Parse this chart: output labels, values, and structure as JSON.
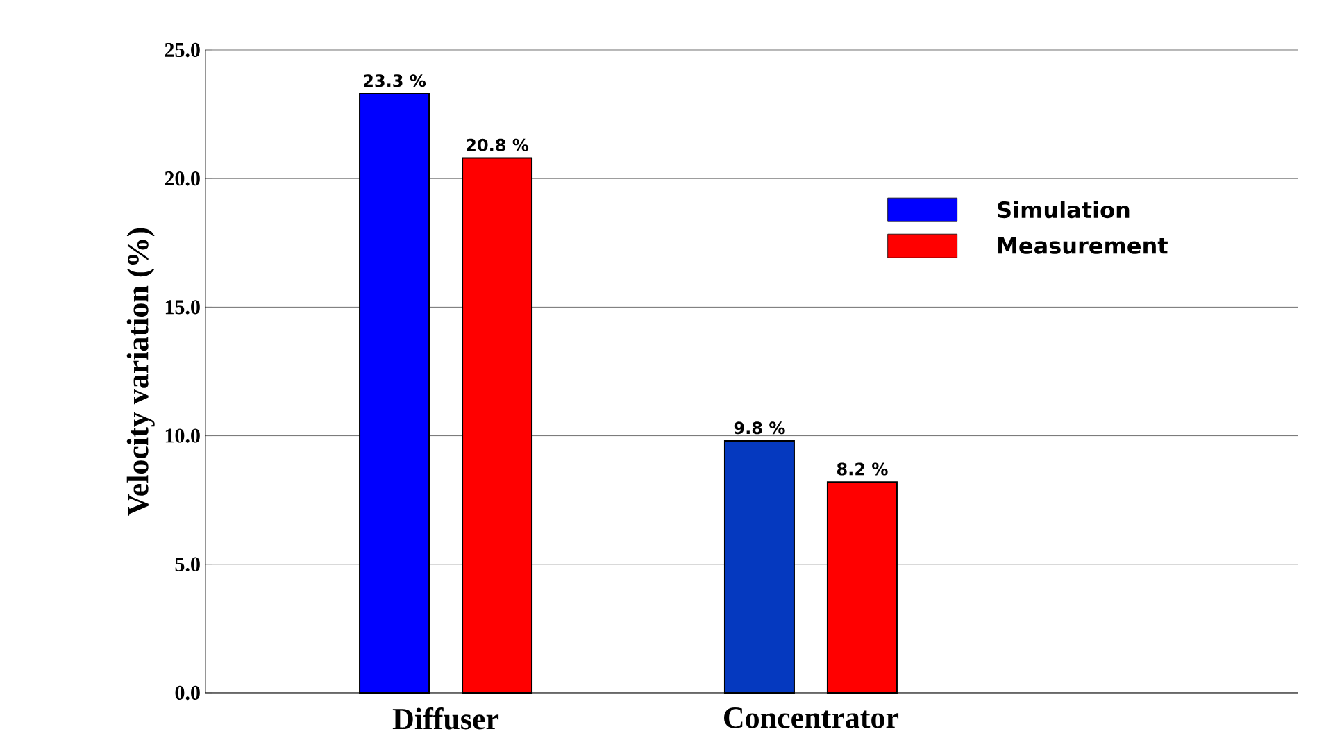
{
  "chart_data": {
    "type": "bar",
    "ylabel": "Velocity variation (%)",
    "categories": [
      "Diffuser",
      "Concentrator"
    ],
    "series": [
      {
        "name": "Simulation",
        "color": "#0000ff",
        "colors": [
          "#0000ff",
          "#0539bf"
        ],
        "values": [
          23.3,
          9.8
        ],
        "value_labels": [
          "23.3 %",
          "9.8 %"
        ]
      },
      {
        "name": "Measurement",
        "color": "#ff0000",
        "colors": [
          "#ff0000",
          "#ff0000"
        ],
        "values": [
          20.8,
          8.2
        ],
        "value_labels": [
          "20.8 %",
          "8.2 %"
        ]
      }
    ],
    "ylim": [
      0,
      25
    ],
    "yticks": [
      {
        "value": 0,
        "label": "0.0"
      },
      {
        "value": 5,
        "label": "5.0"
      },
      {
        "value": 10,
        "label": "10.0"
      },
      {
        "value": 15,
        "label": "15.0"
      },
      {
        "value": 20,
        "label": "20.0"
      },
      {
        "value": 25,
        "label": "25.0"
      }
    ],
    "grid": "y",
    "legend": "right"
  }
}
